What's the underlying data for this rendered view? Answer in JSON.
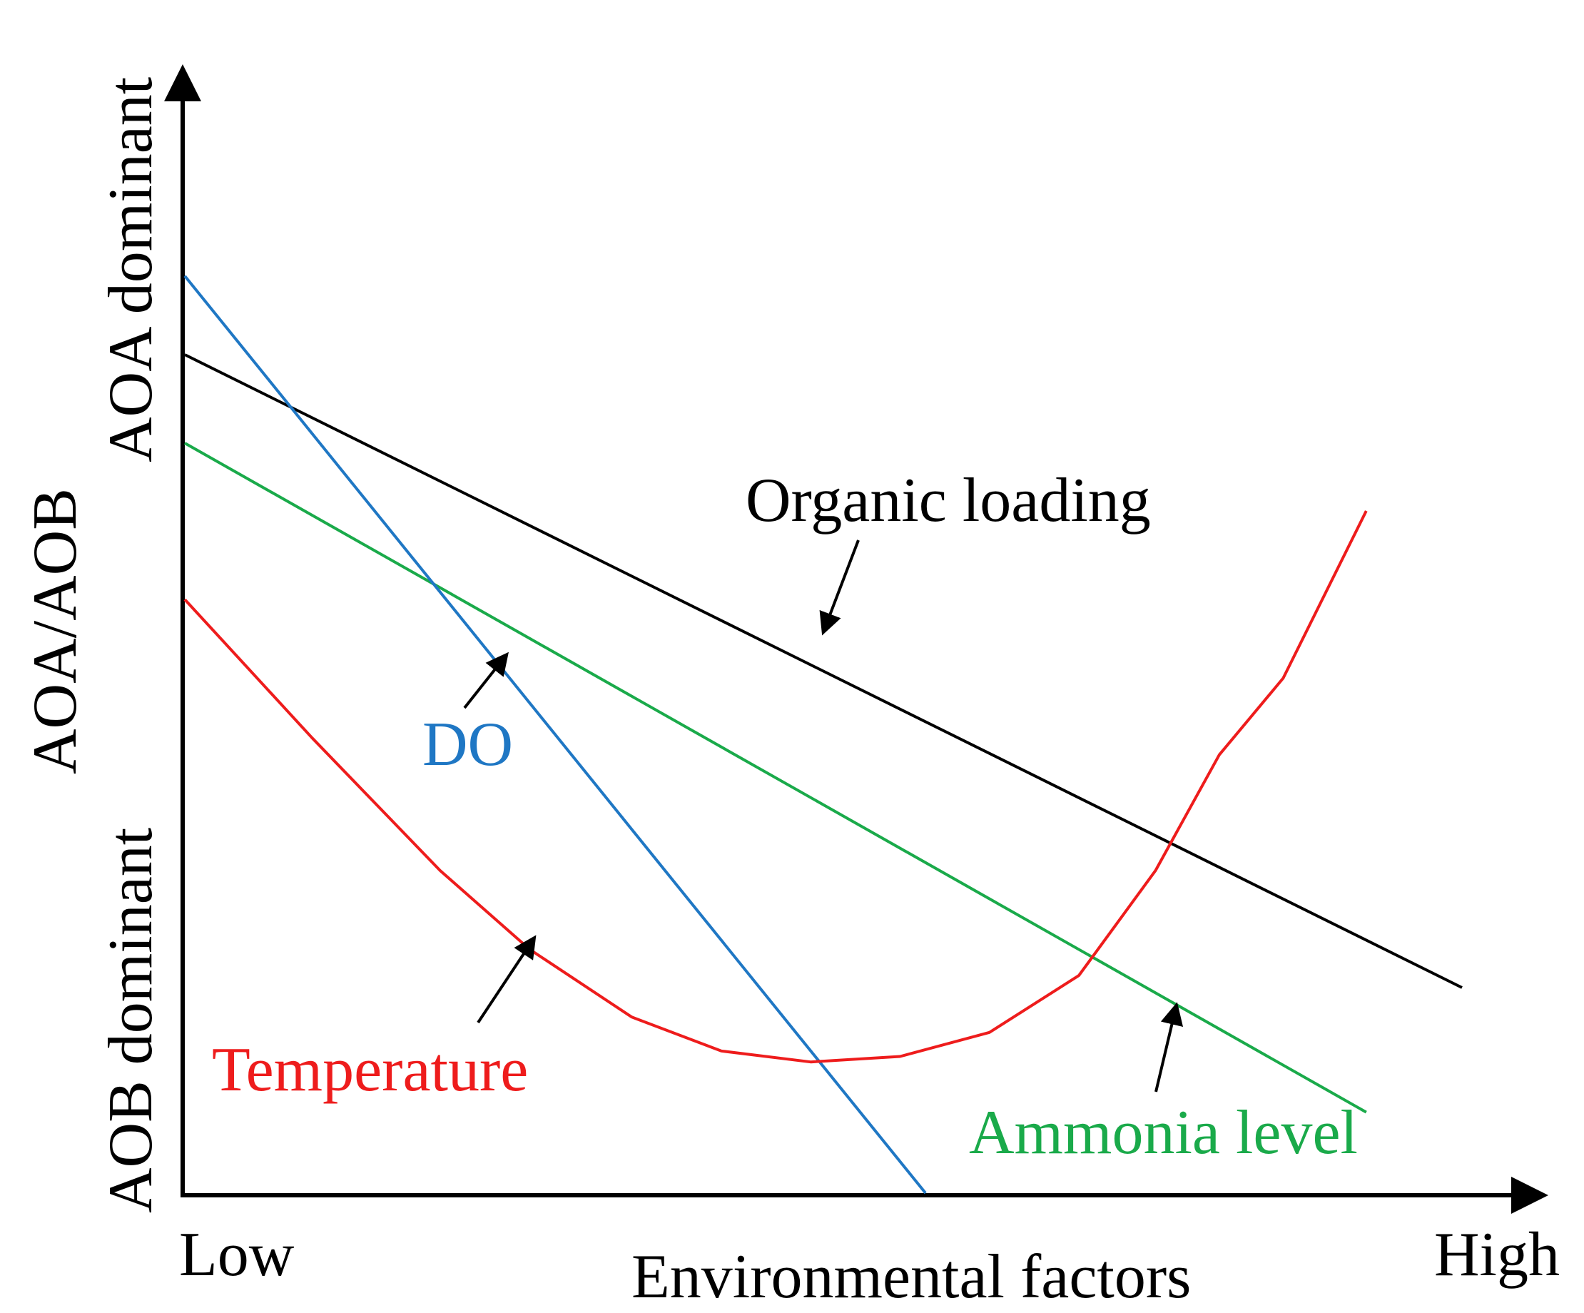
{
  "chart_data": {
    "type": "line",
    "title": "",
    "xlabel": "Environmental factors",
    "ylabel": "AOA/AOB",
    "x_tick_labels": {
      "low": "Low",
      "high": "High"
    },
    "y_region_labels": {
      "top": "AOA dominant",
      "bottom": "AOB dominant"
    },
    "xlim": [
      0,
      100
    ],
    "ylim": [
      0,
      100
    ],
    "series": [
      {
        "name": "Organic loading",
        "label": "Organic loading",
        "color": "#000000",
        "x": [
          0,
          100
        ],
        "y": [
          76.7,
          18.8
        ]
      },
      {
        "name": "Ammonia level",
        "label": "Ammonia level",
        "color": "#1aaa4a",
        "x": [
          0,
          92.5
        ],
        "y": [
          68.6,
          7.4
        ]
      },
      {
        "name": "DO",
        "label": "DO",
        "color": "#1f77c4",
        "x": [
          0,
          58
        ],
        "y": [
          83.9,
          0
        ]
      },
      {
        "name": "Temperature",
        "label": "Temperature",
        "color": "#ee1c1c",
        "x": [
          0,
          10,
          20,
          27,
          35,
          42,
          49,
          56,
          63,
          70,
          76,
          81,
          86,
          92.5
        ],
        "y": [
          54.3,
          41.6,
          29.5,
          22.3,
          16.1,
          13.0,
          12.0,
          12.5,
          14.7,
          19.9,
          29.5,
          40.1,
          47.1,
          62.4
        ]
      }
    ]
  }
}
